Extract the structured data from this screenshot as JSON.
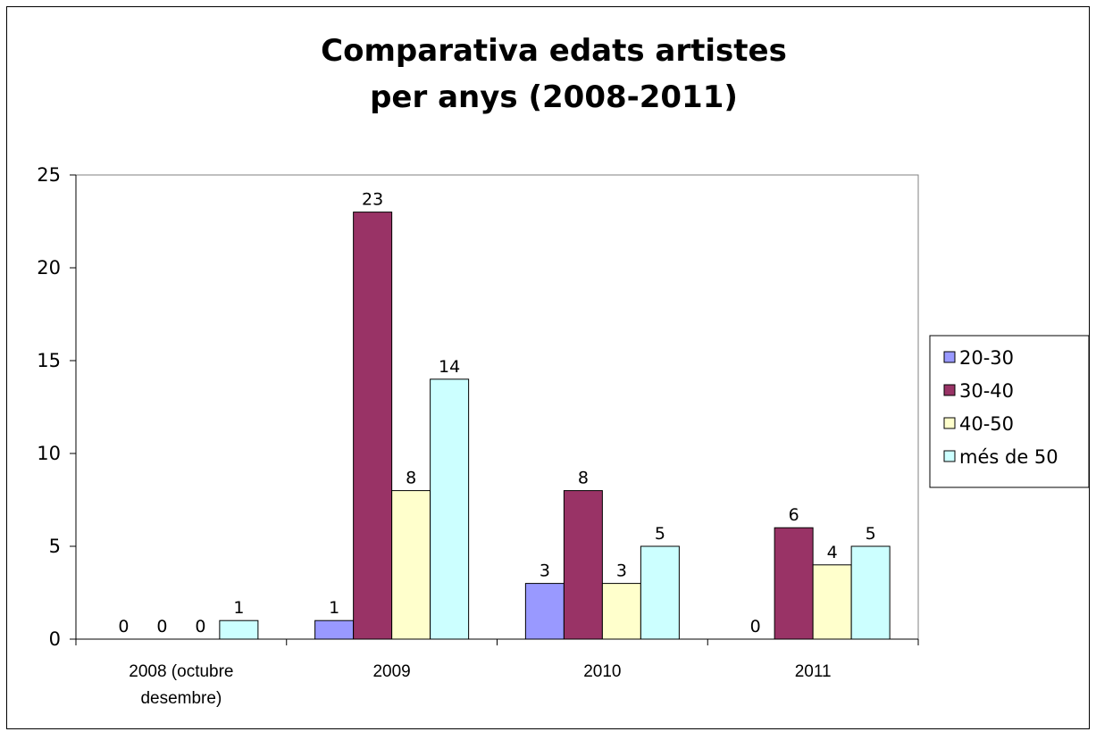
{
  "chart_data": {
    "type": "bar",
    "title": "Comparativa edats artistes per anys (2008-2011)",
    "title_lines": [
      "Comparativa edats artistes",
      "per anys (2008-2011)"
    ],
    "categories": [
      "2008 (octubre desembre)",
      "2009",
      "2010",
      "2011"
    ],
    "category_lines": [
      [
        "2008 (octubre",
        "desembre)"
      ],
      [
        "2009"
      ],
      [
        "2010"
      ],
      [
        "2011"
      ]
    ],
    "series": [
      {
        "name": "20-30",
        "values": [
          0,
          1,
          3,
          0
        ],
        "color": "#9999FF"
      },
      {
        "name": "30-40",
        "values": [
          0,
          23,
          8,
          6
        ],
        "color": "#993366"
      },
      {
        "name": "40-50",
        "values": [
          0,
          8,
          3,
          4
        ],
        "color": "#FFFFCC"
      },
      {
        "name": "més de 50",
        "values": [
          1,
          14,
          5,
          5
        ],
        "color": "#CCFFFF"
      }
    ],
    "yticks": [
      "0",
      "5",
      "10",
      "15",
      "20",
      "25"
    ],
    "ylim": [
      0,
      25
    ],
    "xlabel": "",
    "ylabel": "",
    "grid": false,
    "legend_position": "right",
    "data_labels": true
  }
}
